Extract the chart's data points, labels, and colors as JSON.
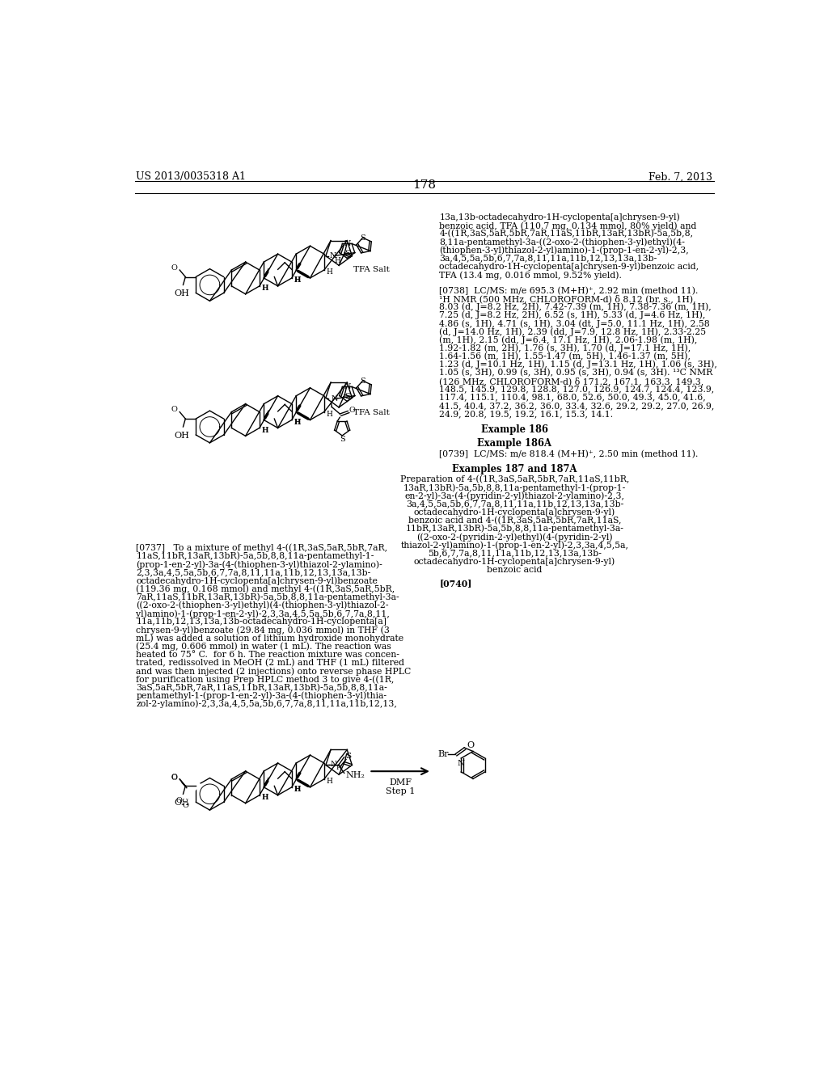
{
  "background_color": "#ffffff",
  "page_number": "178",
  "header_left": "US 2013/0035318 A1",
  "header_right": "Feb. 7, 2013",
  "right_col_text_1": [
    "13a,13b-octadecahydro-1H-cyclopenta[a]chrysen-9-yl)",
    "benzoic acid, TFA (110.7 mg, 0.134 mmol, 80% yield) and",
    "4-((1R,3aS,5aR,5bR,7aR,11aS,11bR,13aR,13bR)-5a,5b,8,",
    "8,11a-pentamethyl-3a-((2-oxo-2-(thiophen-3-yl)ethyl)(4-",
    "(thiophen-3-yl)thiazol-2-yl)amino)-1-(prop-1-en-2-yl)-2,3,",
    "3a,4,5,5a,5b,6,7,7a,8,11,11a,11b,12,13,13a,13b-",
    "octadecahydro-1H-cyclopenta[a]chrysen-9-yl)benzoic acid,",
    "TFA (13.4 mg, 0.016 mmol, 9.52% yield)."
  ],
  "right_col_text_2": [
    "[0738]  LC/MS: m/e 695.3 (M+H)⁺, 2.92 min (method 11).",
    "¹H NMR (500 MHz, CHLOROFORM-d) δ 8.12 (br. s., 1H),",
    "8.03 (d, J=8.2 Hz, 2H), 7.42-7.39 (m, 1H), 7.38-7.36 (m, 1H),",
    "7.25 (d, J=8.2 Hz, 2H), 6.52 (s, 1H), 5.33 (d, J=4.6 Hz, 1H),",
    "4.86 (s, 1H), 4.71 (s, 1H), 3.04 (dt, J=5.0, 11.1 Hz, 1H), 2.58",
    "(d, J=14.0 Hz, 1H), 2.39 (dd, J=7.9, 12.8 Hz, 1H), 2.33-2.25",
    "(m, 1H), 2.15 (dd, J=6.4, 17.1 Hz, 1H), 2.06-1.98 (m, 1H),",
    "1.92-1.82 (m, 2H), 1.76 (s, 3H), 1.70 (d, J=17.1 Hz, 1H),",
    "1.64-1.56 (m, 1H), 1.55-1.47 (m, 5H), 1.46-1.37 (m, 5H),",
    "1.23 (d, J=10.1 Hz, 1H), 1.15 (d, J=13.1 Hz, 1H), 1.06 (s, 3H),",
    "1.05 (s, 3H), 0.99 (s, 3H), 0.95 (s, 3H), 0.94 (s, 3H). ¹³C NMR",
    "(126 MHz, CHLOROFORM-d) δ 171.2, 167.1, 163.3, 149.3,",
    "148.5, 145.9, 129.8, 128.8, 127.0, 126.9, 124.7, 124.4, 123.9,",
    "117.4, 115.1, 110.4, 98.1, 68.0, 52.6, 50.0, 49.3, 45.0, 41.6,",
    "41.5, 40.4, 37.2, 36.2, 36.0, 33.4, 32.6, 29.2, 29.2, 27.0, 26.9,",
    "24.9, 20.8, 19.5, 19.2, 16.1, 15.3, 14.1."
  ],
  "example_186": "Example 186",
  "right_col_text_3": "Example 186A",
  "right_col_text_4": "[0739]  LC/MS: m/e 818.4 (M+H)⁺, 2.50 min (method 11).",
  "right_col_text_5": "Examples 187 and 187A",
  "right_col_text_6": [
    "Preparation of 4-((1R,3aS,5aR,5bR,7aR,11aS,11bR,",
    "13aR,13bR)-5a,5b,8,8,11a-pentamethyl-1-(prop-1-",
    "en-2-yl)-3a-(4-(pyridin-2-yl)thiazol-2-ylamino)-2,3,",
    "3a,4,5,5a,5b,6,7,7a,8,11,11a,11b,12,13,13a,13b-",
    "octadecahydro-1H-cyclopenta[a]chrysen-9-yl)",
    "benzoic acid and 4-((1R,3aS,5aR,5bR,7aR,11aS,",
    "11bR,13aR,13bR)-5a,5b,8,8,11a-pentamethyl-3a-",
    "((2-oxo-2-(pyridin-2-yl)ethyl)(4-(pyridin-2-yl)",
    "thiazol-2-yl)amino)-1-(prop-1-en-2-yl)-2,3,3a,4,5,5a,",
    "5b,6,7,7a,8,11,11a,11b,12,13,13a,13b-",
    "octadecahydro-1H-cyclopenta[a]chrysen-9-yl)",
    "benzoic acid"
  ],
  "left_col_text_1": [
    "[0737]   To a mixture of methyl 4-((1R,3aS,5aR,5bR,7aR,",
    "11aS,11bR,13aR,13bR)-5a,5b,8,8,11a-pentamethyl-1-",
    "(prop-1-en-2-yl)-3a-(4-(thiophen-3-yl)thiazol-2-ylamino)-",
    "2,3,3a,4,5,5a,5b,6,7,7a,8,11,11a,11b,12,13,13a,13b-",
    "octadecahydro-1H-cyclopenta[a]chrysen-9-yl)benzoate",
    "(119.36 mg, 0.168 mmol) and methyl 4-((1R,3aS,5aR,5bR,",
    "7aR,11aS,11bR,13aR,13bR)-5a,5b,8,8,11a-pentamethyl-3a-",
    "((2-oxo-2-(thiophen-3-yl)ethyl)(4-(thiophen-3-yl)thiazol-2-",
    "yl)amino)-1-(prop-1-en-2-yl)-2,3,3a,4,5,5a,5b,6,7,7a,8,11,",
    "11a,11b,12,13,13a,13b-octadecahydro-1H-cyclopenta[a]",
    "chrysen-9-yl)benzoate (29.84 mg, 0.036 mmol) in THF (3",
    "mL) was added a solution of lithium hydroxide monohydrate",
    "(25.4 mg, 0.606 mmol) in water (1 mL). The reaction was",
    "heated to 75° C.  for 6 h. The reaction mixture was concen-",
    "trated, redissolved in MeOH (2 mL) and THF (1 mL) filtered",
    "and was then injected (2 injections) onto reverse phase HPLC",
    "for purification using Prep HPLC method 3 to give 4-((1R,",
    "3aS,5aR,5bR,7aR,11aS,11bR,13aR,13bR)-5a,5b,8,8,11a-",
    "pentamethyl-1-(prop-1-en-2-yl)-3a-(4-(thiophen-3-yl)thia-",
    "zol-2-ylamino)-2,3,3a,4,5,5a,5b,6,7,7a,8,11,11a,11b,12,13,"
  ],
  "bottom_left_text": "[0740]",
  "tfa_salt_label": "TFA Salt",
  "dmf_label": "DMF",
  "step_label": "Step 1"
}
